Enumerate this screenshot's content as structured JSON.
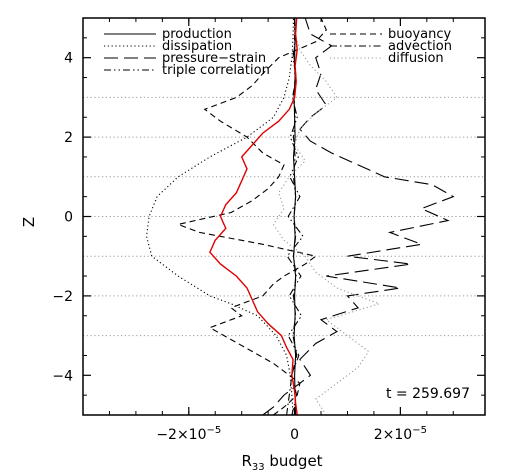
{
  "chart_data": {
    "type": "line",
    "title": "",
    "xlabel_main": "R",
    "xlabel_sub": "33",
    "xlabel_rest": " budget",
    "ylabel": "Z",
    "xlim": [
      -4e-05,
      3.6e-05
    ],
    "ylim": [
      -5,
      5
    ],
    "xticks": [
      {
        "value": -2e-05,
        "mant": "−2×10",
        "exp": "−5"
      },
      {
        "value": 0,
        "mant": "0",
        "exp": ""
      },
      {
        "value": 2e-05,
        "mant": "2×10",
        "exp": "−5"
      }
    ],
    "yticks": [
      -4,
      -2,
      0,
      2,
      4
    ],
    "yticklabels": [
      "−4",
      "−2",
      "0",
      "2",
      "4"
    ],
    "annotation": "t = 259.697",
    "legend": [
      {
        "label": "production",
        "style": "solid"
      },
      {
        "label": "dissipation",
        "style": "dotted"
      },
      {
        "label": "pressure−strain",
        "style": "longdash"
      },
      {
        "label": "triple correlation",
        "style": "dashdotdot"
      },
      {
        "label": "buoyancy",
        "style": "dashed"
      },
      {
        "label": "advection",
        "style": "dashdot"
      },
      {
        "label": "diffusion",
        "style": "grey-dotted"
      }
    ],
    "hlines_y": [
      -3,
      -2,
      -1,
      0,
      1,
      2,
      3
    ],
    "series": [
      {
        "label": "production",
        "style": "solid",
        "color": "#000000",
        "y": [
          -5,
          -4.5,
          -4,
          -3.5,
          -3,
          -2.5,
          -2,
          -1.5,
          -1,
          -0.5,
          0,
          0.5,
          1,
          1.5,
          2,
          2.5,
          3,
          3.5,
          4,
          4.5,
          5
        ],
        "x": [
          2e-07,
          1e-07,
          0,
          2e-07,
          -1e-07,
          1e-07,
          0,
          2e-07,
          -2e-07,
          1e-07,
          -1e-07,
          2e-07,
          0,
          -2e-07,
          1e-07,
          0,
          -1e-07,
          1e-07,
          0,
          1e-07,
          0
        ]
      },
      {
        "label": "dissipation",
        "style": "dotted",
        "color": "#000000",
        "y": [
          -5,
          -4.5,
          -4,
          -3.5,
          -3,
          -2.5,
          -2.2,
          -2.0,
          -1.5,
          -1.0,
          -0.5,
          0,
          0.5,
          1.0,
          1.5,
          2.0,
          2.5,
          3.0,
          3.5,
          4.0,
          4.5,
          5
        ],
        "x": [
          -3e-07,
          -5e-07,
          -8e-07,
          -1.5e-06,
          -3.5e-06,
          -7e-06,
          -1.2e-05,
          -1.6e-05,
          -2.2e-05,
          -2.7e-05,
          -2.8e-05,
          -2.75e-05,
          -2.6e-05,
          -2.2e-05,
          -1.6e-05,
          -9e-06,
          -4e-06,
          -2e-06,
          -1e-06,
          -5e-07,
          -3e-07,
          -2e-07
        ]
      },
      {
        "label": "pressure−strain",
        "style": "longdash",
        "color": "#000000",
        "y": [
          -5,
          -4.8,
          -4.5,
          -4.2,
          -4.0,
          -3.6,
          -3.2,
          -2.9,
          -2.6,
          -2.3,
          -2.0,
          -1.8,
          -1.5,
          -1.2,
          -1.0,
          -0.7,
          -0.4,
          -0.1,
          0.2,
          0.5,
          0.8,
          1.0,
          1.3,
          1.6,
          1.9,
          2.2,
          2.5,
          2.8,
          3.2,
          3.6,
          4.0,
          4.3,
          4.6,
          5
        ],
        "x": [
          -6e-06,
          -4e-06,
          -2e-06,
          1e-06,
          3e-06,
          1e-06,
          4e-06,
          8e-06,
          5e-06,
          1.2e-05,
          1e-05,
          2e-05,
          6e-06,
          2.2e-05,
          1e-05,
          2.4e-05,
          1.8e-05,
          2.9e-05,
          2.4e-05,
          3e-05,
          2.6e-05,
          1.7e-05,
          1.2e-05,
          7e-06,
          3e-06,
          1e-06,
          3e-06,
          6e-06,
          4e-06,
          5e-06,
          4e-06,
          7e-06,
          3e-06,
          2e-06
        ]
      },
      {
        "label": "triple correlation",
        "style": "dashdotdot",
        "color": "#000000",
        "y": [
          -5,
          -4.5,
          -4,
          -3.5,
          -3,
          -2.5,
          -2,
          -1.5,
          -1,
          -0.5,
          0,
          0.5,
          1,
          1.5,
          2,
          2.5,
          3,
          3.5,
          4,
          4.5,
          5
        ],
        "x": [
          -5e-07,
          4e-07,
          -6e-07,
          8e-07,
          -1.2e-06,
          1.3e-06,
          -1e-06,
          1.2e-06,
          -1.4e-06,
          1.6e-06,
          -1.2e-06,
          1e-06,
          -9e-07,
          7e-07,
          -8e-07,
          5e-07,
          -4e-07,
          3e-07,
          -3e-07,
          2e-07,
          -1e-07
        ]
      },
      {
        "label": "buoyancy",
        "style": "dashed",
        "color": "#000000",
        "y": [
          -5,
          -4.8,
          -4.5,
          -4.2,
          -4.0,
          -3.7,
          -3.4,
          -3.1,
          -2.8,
          -2.5,
          -2.3,
          -2.0,
          -1.7,
          -1.5,
          -1.2,
          -1.0,
          -0.7,
          -0.4,
          -0.2,
          0.1,
          0.4,
          0.7,
          1.0,
          1.3,
          1.6,
          2.0,
          2.4,
          2.7,
          3.0,
          3.3,
          3.6,
          4.0,
          4.4,
          4.7,
          5
        ],
        "x": [
          -4e-06,
          -2e-06,
          5e-07,
          1e-06,
          -1e-06,
          -4e-06,
          -8e-06,
          -1.2e-05,
          -1.6e-05,
          -1e-05,
          -1.2e-05,
          -6e-06,
          -4e-06,
          -2e-06,
          2e-06,
          4e-06,
          -6e-06,
          -1.8e-05,
          -2.2e-05,
          -1.2e-05,
          -8e-06,
          -5e-06,
          -3e-06,
          -2e-06,
          -6e-06,
          -9e-06,
          -1.4e-05,
          -1.7e-05,
          -1.1e-05,
          -8e-06,
          -6e-06,
          -3e-06,
          4e-06,
          6e-06,
          5e-06
        ]
      },
      {
        "label": "advection",
        "style": "dashdot",
        "color": "#000000",
        "y": [
          -5,
          -4.5,
          -4,
          -3.5,
          -3,
          -2.5,
          -2,
          -1.5,
          -1,
          -0.5,
          0,
          0.5,
          1,
          1.5,
          2,
          2.5,
          3,
          3.5,
          4,
          4.5,
          5
        ],
        "x": [
          -1.5e-06,
          -1e-06,
          -5e-07,
          4e-07,
          -3e-07,
          2e-07,
          -2e-07,
          3e-07,
          -2e-07,
          2e-07,
          -1e-07,
          2e-07,
          -2e-07,
          1e-07,
          -2e-07,
          1e-07,
          -1e-07,
          1e-07,
          -1e-07,
          0,
          0
        ]
      },
      {
        "label": "diffusion",
        "style": "grey-dotted",
        "color": "#999999",
        "y": [
          -5,
          -4.6,
          -4.2,
          -3.8,
          -3.4,
          -3.0,
          -2.6,
          -2.2,
          -1.8,
          -1.4,
          -1.0,
          -0.6,
          -0.2,
          0.2,
          0.6,
          1.0,
          1.4,
          1.8,
          2.2,
          2.6,
          3.0,
          3.4,
          3.8,
          4.2,
          4.6,
          5
        ],
        "x": [
          6e-06,
          4e-06,
          8e-06,
          1.2e-05,
          1.4e-05,
          1e-05,
          6e-06,
          1.6e-05,
          8e-06,
          4e-06,
          2e-06,
          -2e-06,
          -4e-06,
          -2e-06,
          -3e-06,
          -1e-06,
          2e-06,
          0.0,
          1e-06,
          4e-06,
          8e-06,
          6e-06,
          3e-06,
          1e-06,
          0.0,
          0.0
        ]
      },
      {
        "label": "",
        "style": "red",
        "color": "#e00000",
        "y": [
          -5,
          -4.7,
          -4.4,
          -4.0,
          -3.6,
          -3.3,
          -3.0,
          -2.7,
          -2.4,
          -2.1,
          -1.8,
          -1.5,
          -1.2,
          -0.9,
          -0.6,
          -0.3,
          0,
          0.3,
          0.6,
          0.9,
          1.2,
          1.5,
          1.8,
          2.1,
          2.4,
          2.7,
          3.0,
          3.4,
          3.8,
          4.2,
          4.6,
          5
        ],
        "x": [
          5e-07,
          2e-07,
          0,
          -5e-07,
          -3e-07,
          -1.5e-06,
          -2.5e-06,
          -5e-06,
          -7e-06,
          -8e-06,
          -9e-06,
          -1.1e-05,
          -1.4e-05,
          -1.6e-05,
          -1.5e-05,
          -1.3e-05,
          -1.4e-05,
          -1.3e-05,
          -1.1e-05,
          -1e-05,
          -9e-06,
          -1e-05,
          -8e-06,
          -6e-06,
          -3e-06,
          -1e-06,
          0.0,
          3e-07,
          1e-07,
          5e-07,
          2e-07,
          4e-07
        ]
      }
    ]
  }
}
